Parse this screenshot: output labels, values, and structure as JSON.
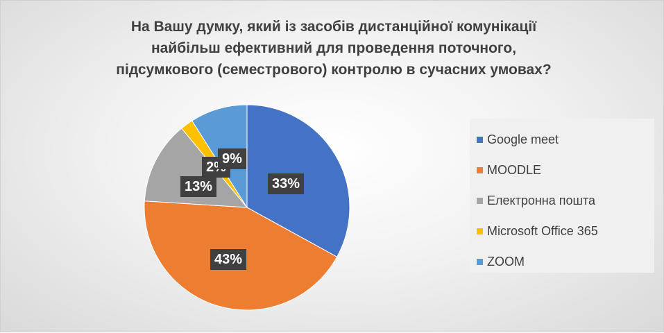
{
  "chart_data": {
    "type": "pie",
    "title_lines": [
      "На Вашу думку, який із засобів дистанційної комунікації",
      "найбільш ефективний для проведення поточного,",
      "підсумкового (семестрового) контролю в сучасних умовах?"
    ],
    "slices": [
      {
        "label": "Google meet",
        "value": 33,
        "display": "33%",
        "color": "#4472C4"
      },
      {
        "label": "MOODLE",
        "value": 43,
        "display": "43%",
        "color": "#ED7D31"
      },
      {
        "label": "Електронна пошта",
        "value": 13,
        "display": "13%",
        "color": "#A5A5A5"
      },
      {
        "label": "Microsoft Office 365",
        "value": 2,
        "display": "2%",
        "color": "#FFC000"
      },
      {
        "label": "ZOOM",
        "value": 9,
        "display": "9%",
        "color": "#5B9BD5"
      }
    ],
    "legend_position": "right"
  }
}
